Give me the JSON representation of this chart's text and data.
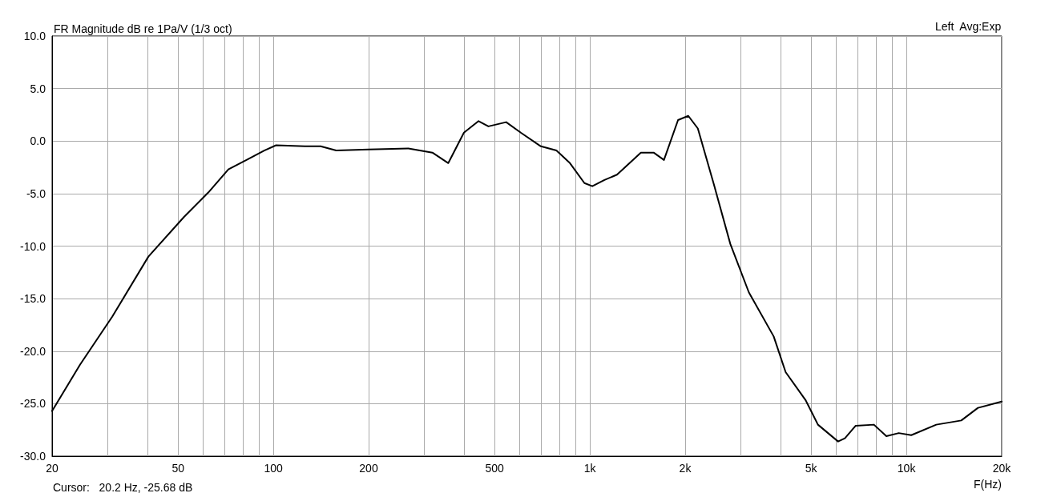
{
  "chart_data": {
    "type": "line",
    "title": "FR Magnitude dB re 1Pa/V (1/3 oct)",
    "xlabel": "F(Hz)",
    "annotations": [
      "Left  Avg:Exp",
      "Cursor:   20.2 Hz, -25.68 dB"
    ],
    "log": "x",
    "grid": true,
    "marker": "none",
    "line_style": "solid",
    "xlim": [
      20,
      20000
    ],
    "ylim": [
      -30,
      10
    ],
    "xticks": [
      20,
      {
        "value": 30,
        "label": null
      },
      {
        "value": 40,
        "label": null
      },
      50,
      {
        "value": 60,
        "label": null
      },
      {
        "value": 70,
        "label": null
      },
      {
        "value": 80,
        "label": null
      },
      {
        "value": 90,
        "label": null
      },
      100,
      200,
      {
        "value": 300,
        "label": null
      },
      {
        "value": 400,
        "label": null
      },
      500,
      {
        "value": 600,
        "label": null
      },
      {
        "value": 700,
        "label": null
      },
      {
        "value": 800,
        "label": null
      },
      {
        "value": 900,
        "label": null
      },
      {
        "value": 1000,
        "label": "1k"
      },
      {
        "value": 2000,
        "label": "2k"
      },
      {
        "value": 3000,
        "label": null
      },
      {
        "value": 4000,
        "label": null
      },
      {
        "value": 5000,
        "label": "5k"
      },
      {
        "value": 6000,
        "label": null
      },
      {
        "value": 7000,
        "label": null
      },
      {
        "value": 8000,
        "label": null
      },
      {
        "value": 9000,
        "label": null
      },
      {
        "value": 10000,
        "label": "10k"
      },
      {
        "value": 20000,
        "label": "20k"
      }
    ],
    "yticks": [
      {
        "value": -30,
        "label": "-30.0"
      },
      {
        "value": -25,
        "label": "-25.0"
      },
      {
        "value": -20,
        "label": "-20.0"
      },
      {
        "value": -15,
        "label": "-15.0"
      },
      {
        "value": -10,
        "label": "-10.0"
      },
      {
        "value": -5,
        "label": "-5.0"
      },
      {
        "value": 0,
        "label": "0.0"
      },
      {
        "value": 5,
        "label": "5.0"
      },
      {
        "value": 10,
        "label": "10.0"
      }
    ],
    "series": [
      {
        "color": "#000000",
        "x": [
          20,
          24.5,
          31,
          40.3,
          52.3,
          62.3,
          72.1,
          83.4,
          93.6,
          102,
          125.8,
          141,
          158,
          200,
          267,
          318,
          357,
          400,
          445,
          478,
          544,
          605,
          700,
          784,
          865,
          961,
          1018,
          1112,
          1218,
          1449,
          1590,
          1714,
          1899,
          2046,
          2193,
          2463,
          2778,
          3178,
          3808,
          4154,
          4810,
          5254,
          6083,
          6392,
          6915,
          7894,
          8643,
          9459,
          10357,
          12425,
          14902,
          16824,
          20000
        ],
        "values": [
          -25.7,
          -21.3,
          -16.7,
          -11.0,
          -7.2,
          -4.9,
          -2.7,
          -1.7,
          -0.9,
          -0.4,
          -0.5,
          -0.5,
          -0.9,
          -0.8,
          -0.7,
          -1.1,
          -2.1,
          0.8,
          1.9,
          1.4,
          1.8,
          0.8,
          -0.5,
          -0.9,
          -2.1,
          -4.0,
          -4.3,
          -3.7,
          -3.2,
          -1.1,
          -1.1,
          -1.8,
          2.0,
          2.4,
          1.2,
          -4.1,
          -9.8,
          -14.4,
          -18.6,
          -22.0,
          -24.7,
          -27.0,
          -28.6,
          -28.3,
          -27.1,
          -27.0,
          -28.1,
          -27.8,
          -28.0,
          -27.0,
          -26.6,
          -25.4,
          -24.8
        ]
      }
    ]
  }
}
